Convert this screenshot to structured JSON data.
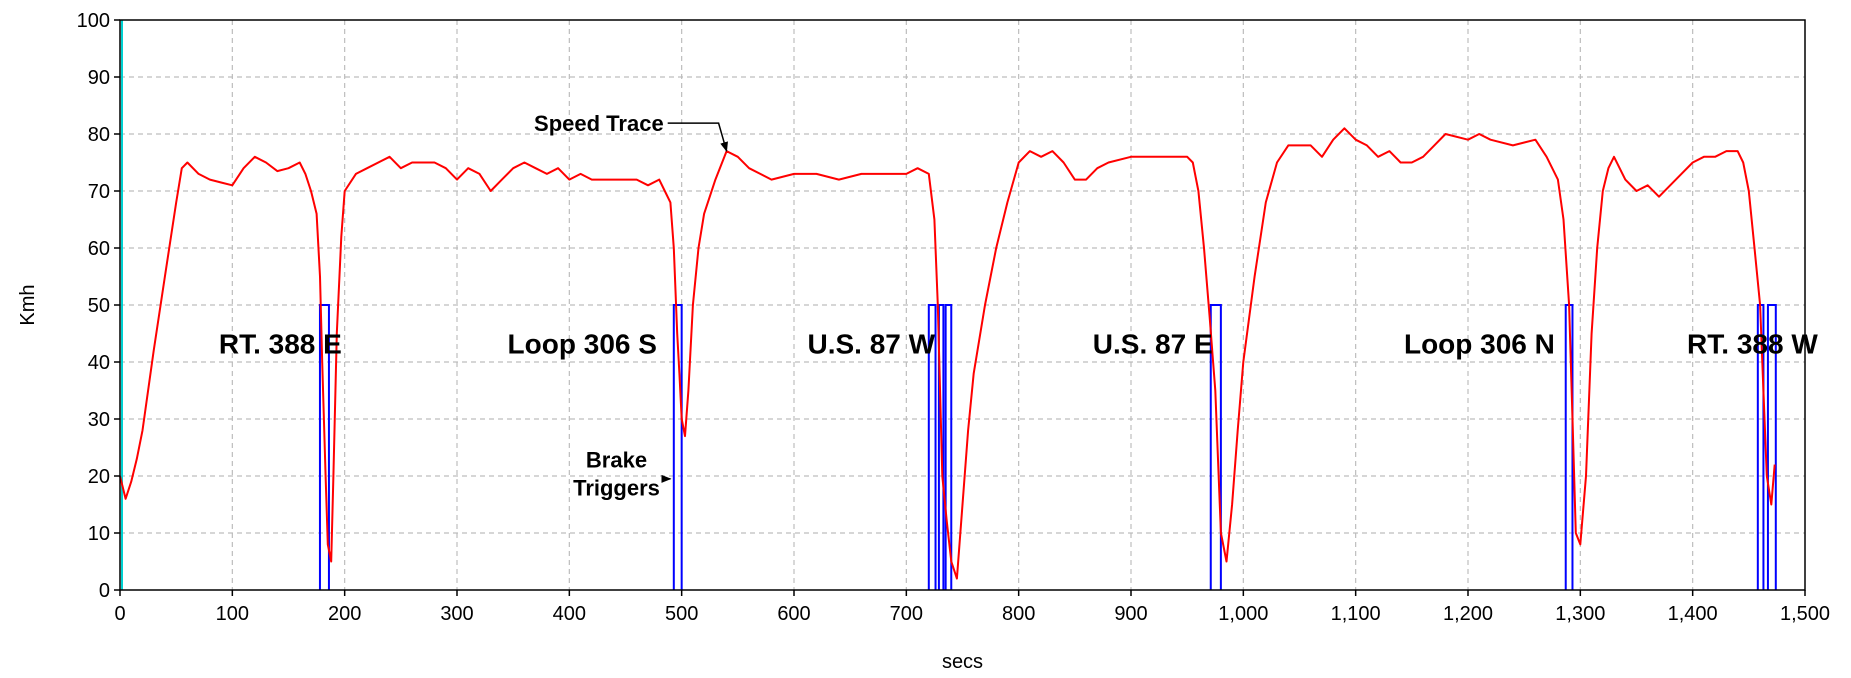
{
  "chart_data": {
    "type": "line",
    "xlabel": "secs",
    "ylabel": "Kmh",
    "xlim": [
      0,
      1500
    ],
    "ylim": [
      0,
      100
    ],
    "grid": true,
    "x_ticks": [
      {
        "value": 0,
        "label": "0"
      },
      {
        "value": 100,
        "label": "100"
      },
      {
        "value": 200,
        "label": "200"
      },
      {
        "value": 300,
        "label": "300"
      },
      {
        "value": 400,
        "label": "400"
      },
      {
        "value": 500,
        "label": "500"
      },
      {
        "value": 600,
        "label": "600"
      },
      {
        "value": 700,
        "label": "700"
      },
      {
        "value": 800,
        "label": "800"
      },
      {
        "value": 900,
        "label": "900"
      },
      {
        "value": 1000,
        "label": "1,000"
      },
      {
        "value": 1100,
        "label": "1,100"
      },
      {
        "value": 1200,
        "label": "1,200"
      },
      {
        "value": 1300,
        "label": "1,300"
      },
      {
        "value": 1400,
        "label": "1,400"
      },
      {
        "value": 1500,
        "label": "1,500"
      }
    ],
    "y_ticks": [
      {
        "value": 0,
        "label": "0"
      },
      {
        "value": 10,
        "label": "10"
      },
      {
        "value": 20,
        "label": "20"
      },
      {
        "value": 30,
        "label": "30"
      },
      {
        "value": 40,
        "label": "40"
      },
      {
        "value": 50,
        "label": "50"
      },
      {
        "value": 60,
        "label": "60"
      },
      {
        "value": 70,
        "label": "70"
      },
      {
        "value": 80,
        "label": "80"
      },
      {
        "value": 90,
        "label": "90"
      },
      {
        "value": 100,
        "label": "100"
      }
    ],
    "speed_trace": {
      "color": "#ff0000",
      "points": [
        [
          0,
          20
        ],
        [
          5,
          16
        ],
        [
          10,
          19
        ],
        [
          15,
          23
        ],
        [
          20,
          28
        ],
        [
          30,
          42
        ],
        [
          40,
          55
        ],
        [
          50,
          68
        ],
        [
          55,
          74
        ],
        [
          60,
          75
        ],
        [
          70,
          73
        ],
        [
          80,
          72
        ],
        [
          90,
          71.5
        ],
        [
          100,
          71
        ],
        [
          110,
          74
        ],
        [
          120,
          76
        ],
        [
          130,
          75
        ],
        [
          140,
          73.5
        ],
        [
          150,
          74
        ],
        [
          160,
          75
        ],
        [
          165,
          73
        ],
        [
          170,
          70
        ],
        [
          175,
          66
        ],
        [
          178,
          55
        ],
        [
          180,
          40
        ],
        [
          183,
          20
        ],
        [
          185,
          8
        ],
        [
          188,
          5
        ],
        [
          190,
          20
        ],
        [
          193,
          45
        ],
        [
          197,
          62
        ],
        [
          200,
          70
        ],
        [
          210,
          73
        ],
        [
          220,
          74
        ],
        [
          240,
          76
        ],
        [
          250,
          74
        ],
        [
          260,
          75
        ],
        [
          280,
          75
        ],
        [
          290,
          74
        ],
        [
          300,
          72
        ],
        [
          310,
          74
        ],
        [
          320,
          73
        ],
        [
          330,
          70
        ],
        [
          340,
          72
        ],
        [
          350,
          74
        ],
        [
          360,
          75
        ],
        [
          370,
          74
        ],
        [
          380,
          73
        ],
        [
          390,
          74
        ],
        [
          400,
          72
        ],
        [
          410,
          73
        ],
        [
          420,
          72
        ],
        [
          440,
          72
        ],
        [
          460,
          72
        ],
        [
          470,
          71
        ],
        [
          480,
          72
        ],
        [
          485,
          70
        ],
        [
          490,
          68
        ],
        [
          493,
          60
        ],
        [
          496,
          45
        ],
        [
          498,
          38
        ],
        [
          500,
          30
        ],
        [
          503,
          27
        ],
        [
          506,
          35
        ],
        [
          510,
          50
        ],
        [
          515,
          60
        ],
        [
          520,
          66
        ],
        [
          530,
          72
        ],
        [
          540,
          77
        ],
        [
          550,
          76
        ],
        [
          560,
          74
        ],
        [
          570,
          73
        ],
        [
          580,
          72
        ],
        [
          600,
          73
        ],
        [
          620,
          73
        ],
        [
          640,
          72
        ],
        [
          660,
          73
        ],
        [
          680,
          73
        ],
        [
          700,
          73
        ],
        [
          710,
          74
        ],
        [
          720,
          73
        ],
        [
          725,
          65
        ],
        [
          728,
          50
        ],
        [
          732,
          20
        ],
        [
          736,
          12
        ],
        [
          740,
          5
        ],
        [
          745,
          2
        ],
        [
          750,
          15
        ],
        [
          755,
          28
        ],
        [
          760,
          38
        ],
        [
          770,
          50
        ],
        [
          780,
          60
        ],
        [
          790,
          68
        ],
        [
          800,
          75
        ],
        [
          810,
          77
        ],
        [
          820,
          76
        ],
        [
          830,
          77
        ],
        [
          840,
          75
        ],
        [
          850,
          72
        ],
        [
          860,
          72
        ],
        [
          870,
          74
        ],
        [
          880,
          75
        ],
        [
          900,
          76
        ],
        [
          920,
          76
        ],
        [
          940,
          76
        ],
        [
          950,
          76
        ],
        [
          955,
          75
        ],
        [
          960,
          70
        ],
        [
          965,
          60
        ],
        [
          970,
          48
        ],
        [
          975,
          35
        ],
        [
          980,
          10
        ],
        [
          985,
          5
        ],
        [
          990,
          15
        ],
        [
          995,
          28
        ],
        [
          1000,
          40
        ],
        [
          1010,
          55
        ],
        [
          1020,
          68
        ],
        [
          1030,
          75
        ],
        [
          1040,
          78
        ],
        [
          1060,
          78
        ],
        [
          1070,
          76
        ],
        [
          1080,
          79
        ],
        [
          1090,
          81
        ],
        [
          1100,
          79
        ],
        [
          1110,
          78
        ],
        [
          1120,
          76
        ],
        [
          1130,
          77
        ],
        [
          1140,
          75
        ],
        [
          1150,
          75
        ],
        [
          1160,
          76
        ],
        [
          1170,
          78
        ],
        [
          1180,
          80
        ],
        [
          1200,
          79
        ],
        [
          1210,
          80
        ],
        [
          1220,
          79
        ],
        [
          1240,
          78
        ],
        [
          1260,
          79
        ],
        [
          1270,
          76
        ],
        [
          1280,
          72
        ],
        [
          1285,
          65
        ],
        [
          1290,
          50
        ],
        [
          1293,
          30
        ],
        [
          1296,
          10
        ],
        [
          1300,
          8
        ],
        [
          1305,
          20
        ],
        [
          1310,
          45
        ],
        [
          1315,
          60
        ],
        [
          1320,
          70
        ],
        [
          1325,
          74
        ],
        [
          1330,
          76
        ],
        [
          1340,
          72
        ],
        [
          1350,
          70
        ],
        [
          1360,
          71
        ],
        [
          1370,
          69
        ],
        [
          1380,
          71
        ],
        [
          1390,
          73
        ],
        [
          1400,
          75
        ],
        [
          1410,
          76
        ],
        [
          1420,
          76
        ],
        [
          1430,
          77
        ],
        [
          1440,
          77
        ],
        [
          1445,
          75
        ],
        [
          1450,
          70
        ],
        [
          1455,
          60
        ],
        [
          1460,
          50
        ],
        [
          1463,
          35
        ],
        [
          1466,
          20
        ],
        [
          1470,
          15
        ],
        [
          1473,
          22
        ]
      ]
    },
    "brake_triggers": {
      "color": "#0000ff",
      "level": 50,
      "pulses": [
        [
          178,
          186
        ],
        [
          493,
          500
        ],
        [
          720,
          726
        ],
        [
          729,
          733
        ],
        [
          735,
          740
        ],
        [
          971,
          980
        ],
        [
          1287,
          1293
        ],
        [
          1458,
          1463
        ],
        [
          1467,
          1474
        ]
      ]
    },
    "start_marker_x": 0,
    "start_marker_color": "#00d0d0",
    "segment_labels": [
      {
        "text": "RT. 388 E",
        "x": 88,
        "y": 41.5
      },
      {
        "text": "Loop 306 S",
        "x": 345,
        "y": 41.5
      },
      {
        "text": "U.S. 87 W",
        "x": 612,
        "y": 41.5
      },
      {
        "text": "U.S. 87 E",
        "x": 866,
        "y": 41.5
      },
      {
        "text": "Loop 306 N",
        "x": 1143,
        "y": 41.5
      },
      {
        "text": "RT. 388 W",
        "x": 1395,
        "y": 41.5
      }
    ],
    "annotations": [
      {
        "lines": [
          "Speed Trace"
        ],
        "x": 484,
        "y": 80.5,
        "arrow_to": [
          540,
          77
        ],
        "anchor": "end"
      },
      {
        "lines": [
          "Brake",
          "Triggers"
        ],
        "x": 442,
        "y": 21.5,
        "arrow_to": [
          490,
          19.5
        ],
        "anchor": "middle"
      }
    ]
  }
}
